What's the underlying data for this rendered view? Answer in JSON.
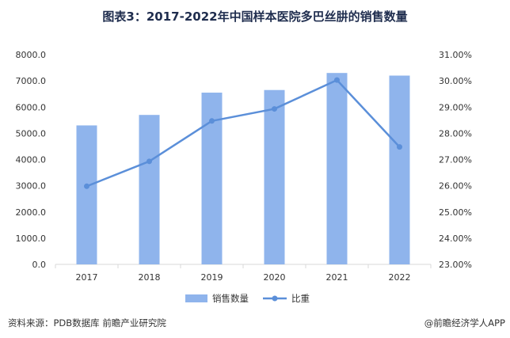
{
  "title": "图表3：2017-2022年中国样本医院多巴丝肼的销售数量",
  "footer": {
    "source": "资料来源：PDB数据库 前瞻产业研究院",
    "credit": "@前瞻经济学人APP"
  },
  "colors": {
    "bar": "#8fb4ec",
    "line": "#5b8fd9",
    "grid": "#d9d9d9"
  },
  "chart_data": {
    "type": "bar",
    "categories": [
      "2017",
      "2018",
      "2019",
      "2020",
      "2021",
      "2022"
    ],
    "series": [
      {
        "name": "销售数量",
        "type": "bar",
        "axis": "left",
        "values": [
          5300,
          5700,
          6550,
          6650,
          7300,
          7200
        ]
      },
      {
        "name": "比重",
        "type": "line",
        "axis": "right",
        "values": [
          25.98,
          26.93,
          28.47,
          28.93,
          30.03,
          27.48
        ]
      }
    ],
    "ylim_left": [
      0,
      8000
    ],
    "ylim_right": [
      23,
      31
    ],
    "yticks_left": [
      "0.0",
      "1000.0",
      "2000.0",
      "3000.0",
      "4000.0",
      "5000.0",
      "6000.0",
      "7000.0",
      "8000.0"
    ],
    "yticks_right": [
      "23.00%",
      "24.00%",
      "25.00%",
      "26.00%",
      "27.00%",
      "28.00%",
      "29.00%",
      "30.00%",
      "31.00%"
    ],
    "legend": [
      "销售数量",
      "比重"
    ],
    "legend_position": "bottom",
    "grid": false
  }
}
